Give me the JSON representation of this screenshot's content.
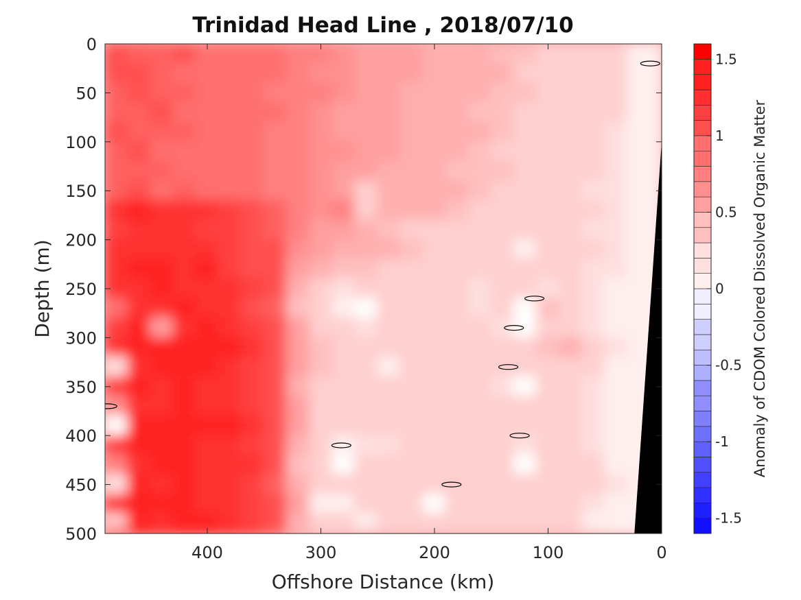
{
  "chart_data": {
    "type": "heatmap",
    "title": "Trinidad Head Line , 2018/07/10",
    "xlabel": "Offshore Distance (km)",
    "ylabel": "Depth (m)",
    "xlim": [
      490,
      0
    ],
    "ylim": [
      0,
      500
    ],
    "x_reversed": true,
    "y_reversed": true,
    "x_ticks": [
      400,
      300,
      200,
      100,
      0
    ],
    "y_ticks": [
      0,
      50,
      100,
      150,
      200,
      250,
      300,
      350,
      400,
      450,
      500
    ],
    "colorbar": {
      "label": "Anomaly of CDOM Colored Dissolved Organic Matter",
      "range": [
        -1.6,
        1.6
      ],
      "step": 0.1,
      "ticks": [
        1.5,
        1,
        0.5,
        0,
        -0.5,
        -1,
        -1.5
      ],
      "tick_labels": [
        "1.5",
        "1",
        "0.5",
        "0",
        "-0.5",
        "-1",
        "-1.5"
      ],
      "colors": {
        "negative": "#0000ff",
        "zero": "#ffffff",
        "positive": "#ff0000"
      }
    },
    "x_columns": [
      480,
      460,
      440,
      420,
      400,
      380,
      360,
      340,
      320,
      300,
      280,
      260,
      240,
      220,
      200,
      180,
      160,
      140,
      120,
      100,
      80,
      60,
      40,
      20
    ],
    "y_rows": [
      0,
      10,
      30,
      50,
      70,
      90,
      110,
      130,
      150,
      170,
      190,
      210,
      230,
      250,
      270,
      290,
      310,
      330,
      350,
      370,
      390,
      410,
      430,
      450,
      470,
      490,
      500
    ],
    "values": [
      [
        1.05,
        1.1,
        1.0,
        1.0,
        0.95,
        0.95,
        0.9,
        0.85,
        0.8,
        0.75,
        0.7,
        0.6,
        0.6,
        0.55,
        0.5,
        0.45,
        0.5,
        0.45,
        0.4,
        0.35,
        0.35,
        0.3,
        0.3,
        0.15
      ],
      [
        1.05,
        1.0,
        1.0,
        1.05,
        0.95,
        0.9,
        0.85,
        0.85,
        0.8,
        0.75,
        0.7,
        0.55,
        0.6,
        0.55,
        0.5,
        0.5,
        0.45,
        0.4,
        0.4,
        0.35,
        0.3,
        0.3,
        0.25,
        0.1
      ],
      [
        1.1,
        1.05,
        1.0,
        0.95,
        0.95,
        0.9,
        0.9,
        0.85,
        0.8,
        0.7,
        0.7,
        0.6,
        0.55,
        0.55,
        0.5,
        0.45,
        0.45,
        0.45,
        0.35,
        0.35,
        0.3,
        0.3,
        0.25,
        0.15
      ],
      [
        1.0,
        1.05,
        1.0,
        1.0,
        0.95,
        0.9,
        0.85,
        0.8,
        0.8,
        0.75,
        0.65,
        0.6,
        0.6,
        0.5,
        0.5,
        0.5,
        0.45,
        0.4,
        0.4,
        0.3,
        0.3,
        0.25,
        0.25,
        0.15
      ],
      [
        1.0,
        1.0,
        1.05,
        0.95,
        0.95,
        0.9,
        0.85,
        0.85,
        0.75,
        0.7,
        0.6,
        0.6,
        0.55,
        0.5,
        0.5,
        0.45,
        0.4,
        0.4,
        0.35,
        0.35,
        0.3,
        0.3,
        0.25,
        0.15
      ],
      [
        1.05,
        1.0,
        1.0,
        1.0,
        0.9,
        0.9,
        0.85,
        0.8,
        0.8,
        0.7,
        0.6,
        0.55,
        0.55,
        0.5,
        0.45,
        0.45,
        0.45,
        0.4,
        0.35,
        0.35,
        0.3,
        0.25,
        0.2,
        0.1
      ],
      [
        1.0,
        1.05,
        0.95,
        0.95,
        0.95,
        0.9,
        0.85,
        0.8,
        0.75,
        0.7,
        0.65,
        0.55,
        0.55,
        0.5,
        0.5,
        0.45,
        0.4,
        0.35,
        0.35,
        0.3,
        0.3,
        0.25,
        0.2,
        0.1
      ],
      [
        1.0,
        1.0,
        1.0,
        0.95,
        0.9,
        0.9,
        0.85,
        0.8,
        0.75,
        0.7,
        0.6,
        0.6,
        0.5,
        0.5,
        0.45,
        0.4,
        0.4,
        0.4,
        0.35,
        0.3,
        0.3,
        0.25,
        0.2,
        0.1
      ],
      [
        1.0,
        1.05,
        0.95,
        1.0,
        0.95,
        0.9,
        0.85,
        0.75,
        0.75,
        0.65,
        0.55,
        0.3,
        0.5,
        0.5,
        0.45,
        0.45,
        0.4,
        0.35,
        0.3,
        0.3,
        0.25,
        0.2,
        0.2,
        0.1
      ],
      [
        1.3,
        1.35,
        1.3,
        1.3,
        1.25,
        1.2,
        1.15,
        1.0,
        0.8,
        0.7,
        0.75,
        0.35,
        0.5,
        0.45,
        0.45,
        0.4,
        0.35,
        0.35,
        0.3,
        0.3,
        0.25,
        0.25,
        0.2,
        0.1
      ],
      [
        1.2,
        1.25,
        1.3,
        1.25,
        1.2,
        1.2,
        1.1,
        1.0,
        0.75,
        0.6,
        0.55,
        0.5,
        0.4,
        0.3,
        0.25,
        0.3,
        0.35,
        0.3,
        0.35,
        0.3,
        0.25,
        0.2,
        0.2,
        0.1
      ],
      [
        1.25,
        1.3,
        1.3,
        1.25,
        1.25,
        1.2,
        1.15,
        1.05,
        0.7,
        0.55,
        0.45,
        0.45,
        0.45,
        0.4,
        0.35,
        0.35,
        0.35,
        0.35,
        0.15,
        0.3,
        0.25,
        0.25,
        0.2,
        0.1
      ],
      [
        1.3,
        1.35,
        1.35,
        1.3,
        1.4,
        1.2,
        1.15,
        1.05,
        0.6,
        0.45,
        0.4,
        0.4,
        0.35,
        0.35,
        0.3,
        0.3,
        0.35,
        0.3,
        0.3,
        0.25,
        0.25,
        0.2,
        0.2,
        0.1
      ],
      [
        1.25,
        1.3,
        1.35,
        1.3,
        1.3,
        1.25,
        1.2,
        1.05,
        0.5,
        0.3,
        0.2,
        0.25,
        0.3,
        0.3,
        0.3,
        0.25,
        0.2,
        0.3,
        0.25,
        0.2,
        0.25,
        0.2,
        0.15,
        0.1
      ],
      [
        0.9,
        1.3,
        1.3,
        1.35,
        1.3,
        1.25,
        1.15,
        1.0,
        0.4,
        0.3,
        0.15,
        -0.02,
        0.25,
        0.25,
        0.25,
        0.3,
        0.2,
        0.3,
        0.0,
        0.4,
        0.3,
        0.2,
        0.15,
        0.1
      ],
      [
        1.2,
        1.35,
        0.6,
        1.3,
        1.35,
        1.3,
        1.2,
        1.05,
        0.55,
        0.35,
        0.25,
        0.2,
        0.25,
        0.25,
        0.3,
        0.25,
        0.25,
        0.2,
        -0.05,
        0.3,
        0.3,
        0.2,
        0.15,
        0.05
      ],
      [
        1.3,
        1.4,
        1.35,
        1.45,
        1.4,
        1.35,
        1.25,
        1.1,
        0.6,
        0.4,
        0.35,
        0.3,
        0.3,
        0.3,
        0.3,
        0.3,
        0.25,
        0.3,
        0.3,
        0.4,
        0.5,
        0.3,
        0.2,
        0.05
      ],
      [
        0.2,
        1.3,
        1.35,
        1.35,
        1.35,
        1.3,
        1.2,
        1.05,
        0.6,
        0.4,
        0.3,
        0.3,
        0.1,
        0.25,
        0.25,
        0.3,
        0.25,
        0.3,
        0.3,
        0.3,
        0.3,
        0.25,
        0.15,
        0.05
      ],
      [
        1.2,
        1.35,
        1.3,
        1.35,
        1.3,
        1.25,
        1.2,
        1.05,
        0.5,
        0.3,
        0.3,
        0.3,
        0.3,
        0.3,
        0.25,
        0.3,
        0.3,
        0.2,
        0.0,
        0.3,
        0.3,
        0.2,
        0.15,
        0.05
      ],
      [
        0.7,
        1.3,
        1.3,
        1.35,
        1.3,
        1.25,
        1.2,
        1.1,
        0.6,
        0.35,
        0.3,
        0.3,
        0.3,
        0.25,
        0.3,
        0.25,
        0.25,
        0.3,
        0.3,
        0.3,
        0.3,
        0.2,
        0.15,
        0.05
      ],
      [
        -0.05,
        1.35,
        1.35,
        1.4,
        1.35,
        1.4,
        1.25,
        1.1,
        0.6,
        0.35,
        0.3,
        0.25,
        0.3,
        0.3,
        0.25,
        0.3,
        0.3,
        0.25,
        0.25,
        0.3,
        0.3,
        0.2,
        0.15,
        0.05
      ],
      [
        1.2,
        1.35,
        1.35,
        1.35,
        1.3,
        1.3,
        1.2,
        1.05,
        0.5,
        0.3,
        0.15,
        0.2,
        0.2,
        0.25,
        0.3,
        0.25,
        0.25,
        0.3,
        0.2,
        0.25,
        0.25,
        0.2,
        0.15,
        0.05
      ],
      [
        0.8,
        1.3,
        1.35,
        1.4,
        1.3,
        1.3,
        1.25,
        1.05,
        0.4,
        0.3,
        -0.02,
        0.3,
        0.3,
        0.3,
        0.25,
        0.3,
        0.3,
        0.25,
        -0.05,
        0.3,
        0.3,
        0.25,
        0.15,
        0.05
      ],
      [
        0.2,
        1.35,
        1.3,
        1.35,
        1.3,
        1.25,
        1.2,
        1.0,
        0.5,
        0.3,
        0.3,
        0.3,
        0.3,
        0.25,
        0.3,
        0.3,
        0.3,
        0.3,
        0.3,
        0.3,
        0.3,
        0.25,
        0.2,
        0.05
      ],
      [
        1.3,
        1.4,
        1.35,
        1.35,
        1.3,
        1.3,
        1.2,
        1.05,
        0.55,
        0.1,
        0.1,
        0.3,
        0.3,
        0.3,
        -0.05,
        0.3,
        0.3,
        0.25,
        0.25,
        0.3,
        0.25,
        0.2,
        0.15,
        0.05
      ],
      [
        0.3,
        1.35,
        1.3,
        1.35,
        1.35,
        1.3,
        1.2,
        1.05,
        0.5,
        0.3,
        0.3,
        0.1,
        0.3,
        0.3,
        0.3,
        0.3,
        0.25,
        0.3,
        0.3,
        0.3,
        0.3,
        0.05,
        0.15,
        0.05
      ],
      [
        1.3,
        1.35,
        1.35,
        1.4,
        1.45,
        1.35,
        1.25,
        1.05,
        0.5,
        0.3,
        0.3,
        0.3,
        0.3,
        0.3,
        0.3,
        0.25,
        0.3,
        0.3,
        0.3,
        0.35,
        0.3,
        0.2,
        0.15,
        0.05
      ]
    ],
    "bathymetry_mask": [
      [
        0,
        0
      ],
      [
        0,
        100
      ],
      [
        24,
        500
      ],
      [
        0,
        500
      ]
    ],
    "zero_contours": [
      {
        "x": 10,
        "y": 20
      },
      {
        "x": 112,
        "y": 260
      },
      {
        "x": 130,
        "y": 290
      },
      {
        "x": 135,
        "y": 330
      },
      {
        "x": 125,
        "y": 400
      },
      {
        "x": 282,
        "y": 410
      },
      {
        "x": 185,
        "y": 450
      },
      {
        "x": 488,
        "y": 370
      }
    ]
  }
}
